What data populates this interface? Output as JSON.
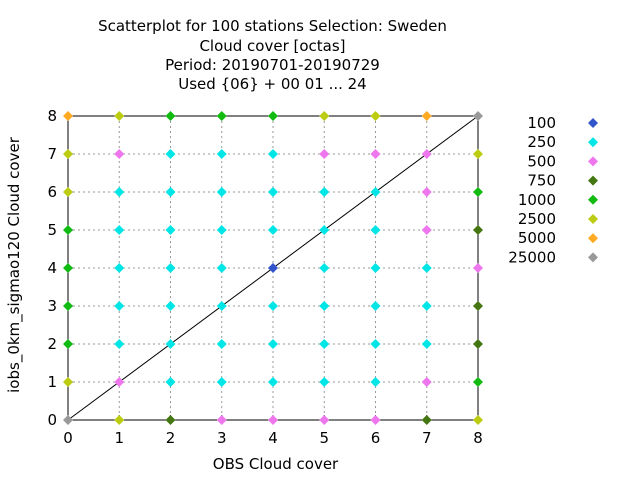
{
  "chart_data": {
    "type": "scatter",
    "title_lines": [
      "Scatterplot for  100 stations Selection: Sweden",
      "Cloud cover [octas]",
      "Period: 20190701-20190729",
      "Used {06} + 00 01 ... 24"
    ],
    "xlabel": "OBS Cloud cover",
    "ylabel": "iobs_0km_sigmao120 Cloud cover",
    "xlim": [
      0,
      8
    ],
    "ylim": [
      0,
      8
    ],
    "xticks": [
      0,
      1,
      2,
      3,
      4,
      5,
      6,
      7,
      8
    ],
    "yticks": [
      0,
      1,
      2,
      3,
      4,
      5,
      6,
      7,
      8
    ],
    "grid": true,
    "diagonal_line": true,
    "legend_position": "right",
    "series": [
      {
        "name": "100",
        "color": "#3355cc",
        "points": [
          [
            4,
            4
          ]
        ]
      },
      {
        "name": "250",
        "color": "#00e5e5",
        "points": [
          [
            2,
            1
          ],
          [
            3,
            1
          ],
          [
            4,
            1
          ],
          [
            5,
            1
          ],
          [
            6,
            1
          ],
          [
            1,
            2
          ],
          [
            2,
            2
          ],
          [
            3,
            2
          ],
          [
            4,
            2
          ],
          [
            5,
            2
          ],
          [
            6,
            2
          ],
          [
            7,
            2
          ],
          [
            1,
            3
          ],
          [
            2,
            3
          ],
          [
            3,
            3
          ],
          [
            4,
            3
          ],
          [
            5,
            3
          ],
          [
            6,
            3
          ],
          [
            7,
            3
          ],
          [
            1,
            4
          ],
          [
            2,
            4
          ],
          [
            3,
            4
          ],
          [
            5,
            4
          ],
          [
            6,
            4
          ],
          [
            7,
            4
          ],
          [
            1,
            5
          ],
          [
            2,
            5
          ],
          [
            3,
            5
          ],
          [
            4,
            5
          ],
          [
            5,
            5
          ],
          [
            6,
            5
          ],
          [
            1,
            6
          ],
          [
            2,
            6
          ],
          [
            3,
            6
          ],
          [
            4,
            6
          ],
          [
            5,
            6
          ],
          [
            6,
            6
          ],
          [
            2,
            7
          ],
          [
            3,
            7
          ],
          [
            4,
            7
          ]
        ]
      },
      {
        "name": "500",
        "color": "#ee77ee",
        "points": [
          [
            1,
            1
          ],
          [
            7,
            1
          ],
          [
            8,
            4
          ],
          [
            7,
            5
          ],
          [
            7,
            6
          ],
          [
            1,
            7
          ],
          [
            5,
            7
          ],
          [
            6,
            7
          ],
          [
            7,
            7
          ],
          [
            3,
            0
          ],
          [
            4,
            0
          ],
          [
            5,
            0
          ],
          [
            6,
            0
          ]
        ]
      },
      {
        "name": "750",
        "color": "#447711",
        "points": [
          [
            2,
            0
          ],
          [
            7,
            0
          ],
          [
            8,
            2
          ],
          [
            8,
            3
          ],
          [
            8,
            5
          ]
        ]
      },
      {
        "name": "1000",
        "color": "#11bb11",
        "points": [
          [
            0,
            2
          ],
          [
            0,
            3
          ],
          [
            0,
            4
          ],
          [
            0,
            5
          ],
          [
            8,
            1
          ],
          [
            8,
            6
          ],
          [
            2,
            8
          ],
          [
            3,
            8
          ],
          [
            4,
            8
          ]
        ]
      },
      {
        "name": "2500",
        "color": "#bbcc11",
        "points": [
          [
            0,
            1
          ],
          [
            0,
            6
          ],
          [
            0,
            7
          ],
          [
            1,
            0
          ],
          [
            8,
            0
          ],
          [
            8,
            7
          ],
          [
            1,
            8
          ],
          [
            5,
            8
          ],
          [
            6,
            8
          ]
        ]
      },
      {
        "name": "5000",
        "color": "#ffaa22",
        "points": [
          [
            0,
            8
          ],
          [
            7,
            8
          ]
        ]
      },
      {
        "name": "25000",
        "color": "#999999",
        "points": [
          [
            0,
            0
          ],
          [
            8,
            8
          ]
        ]
      }
    ]
  }
}
